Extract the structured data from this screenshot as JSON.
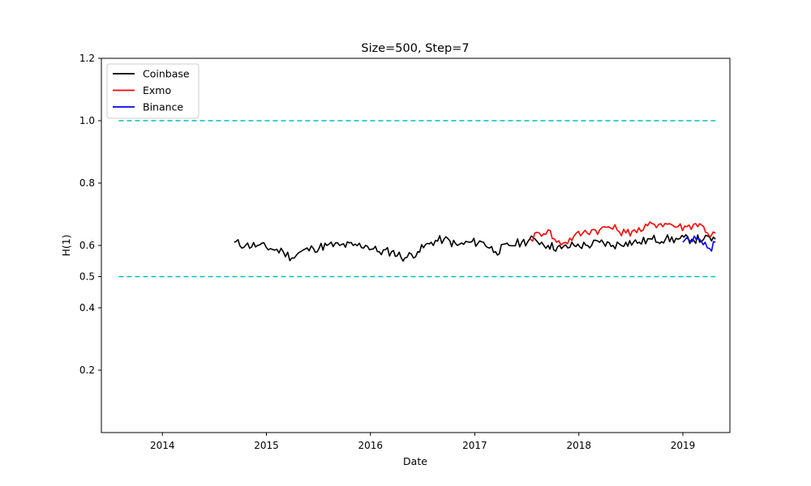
{
  "chart_data": {
    "type": "line",
    "title": "Size=500, Step=7",
    "xlabel": "Date",
    "ylabel": "H(1)",
    "xlim": [
      "2013-06-01",
      "2019-06-15"
    ],
    "ylim": [
      0.0,
      1.2
    ],
    "x_ticks": [
      "2014",
      "2015",
      "2016",
      "2017",
      "2018",
      "2019"
    ],
    "y_ticks": [
      "0.2",
      "0.4",
      "0.5",
      "0.6",
      "0.8",
      "1.0",
      "1.2"
    ],
    "grid": false,
    "legend_position": "top-left",
    "series": [
      {
        "name": "Coinbase",
        "color": "#000000",
        "points": [
          [
            "2014-09-10",
            0.61
          ],
          [
            "2014-10-20",
            0.6
          ],
          [
            "2014-12-01",
            0.6
          ],
          [
            "2015-01-15",
            0.59
          ],
          [
            "2015-03-01",
            0.58
          ],
          [
            "2015-04-01",
            0.56
          ],
          [
            "2015-05-01",
            0.58
          ],
          [
            "2015-06-15",
            0.59
          ],
          [
            "2015-08-01",
            0.6
          ],
          [
            "2015-09-15",
            0.6
          ],
          [
            "2015-11-01",
            0.6
          ],
          [
            "2015-12-15",
            0.6
          ],
          [
            "2016-02-01",
            0.58
          ],
          [
            "2016-03-15",
            0.58
          ],
          [
            "2016-05-01",
            0.56
          ],
          [
            "2016-06-15",
            0.58
          ],
          [
            "2016-08-01",
            0.61
          ],
          [
            "2016-09-15",
            0.62
          ],
          [
            "2016-11-01",
            0.6
          ],
          [
            "2016-12-15",
            0.61
          ],
          [
            "2017-02-01",
            0.61
          ],
          [
            "2017-03-15",
            0.58
          ],
          [
            "2017-05-01",
            0.6
          ],
          [
            "2017-06-15",
            0.61
          ],
          [
            "2017-08-01",
            0.62
          ],
          [
            "2017-09-15",
            0.6
          ],
          [
            "2017-11-01",
            0.59
          ],
          [
            "2017-12-15",
            0.6
          ],
          [
            "2018-02-01",
            0.6
          ],
          [
            "2018-03-15",
            0.61
          ],
          [
            "2018-05-01",
            0.6
          ],
          [
            "2018-06-15",
            0.61
          ],
          [
            "2018-08-01",
            0.61
          ],
          [
            "2018-09-15",
            0.62
          ],
          [
            "2018-11-01",
            0.62
          ],
          [
            "2018-12-15",
            0.62
          ],
          [
            "2019-02-01",
            0.62
          ],
          [
            "2019-03-15",
            0.62
          ],
          [
            "2019-04-25",
            0.62
          ]
        ]
      },
      {
        "name": "Exmo",
        "color": "#ff0000",
        "points": [
          [
            "2017-07-15",
            0.62
          ],
          [
            "2017-08-15",
            0.64
          ],
          [
            "2017-09-15",
            0.65
          ],
          [
            "2017-10-15",
            0.61
          ],
          [
            "2017-11-15",
            0.61
          ],
          [
            "2017-12-15",
            0.63
          ],
          [
            "2018-01-15",
            0.64
          ],
          [
            "2018-02-15",
            0.65
          ],
          [
            "2018-03-15",
            0.65
          ],
          [
            "2018-04-15",
            0.66
          ],
          [
            "2018-05-15",
            0.65
          ],
          [
            "2018-06-15",
            0.64
          ],
          [
            "2018-07-15",
            0.65
          ],
          [
            "2018-08-15",
            0.65
          ],
          [
            "2018-09-15",
            0.67
          ],
          [
            "2018-10-15",
            0.67
          ],
          [
            "2018-11-15",
            0.67
          ],
          [
            "2018-12-15",
            0.66
          ],
          [
            "2019-01-15",
            0.66
          ],
          [
            "2019-02-15",
            0.67
          ],
          [
            "2019-03-15",
            0.66
          ],
          [
            "2019-04-10",
            0.63
          ],
          [
            "2019-04-25",
            0.64
          ]
        ]
      },
      {
        "name": "Binance",
        "color": "#0000ff",
        "points": [
          [
            "2019-01-01",
            0.61
          ],
          [
            "2019-01-20",
            0.62
          ],
          [
            "2019-02-10",
            0.63
          ],
          [
            "2019-03-01",
            0.62
          ],
          [
            "2019-03-20",
            0.61
          ],
          [
            "2019-04-05",
            0.59
          ],
          [
            "2019-04-25",
            0.61
          ]
        ]
      }
    ],
    "reference_lines": [
      {
        "y": 1.0,
        "color": "#00bfbf",
        "style": "dashed",
        "x_from": "2013-08-01",
        "x_to": "2019-04-25"
      },
      {
        "y": 0.5,
        "color": "#00bfbf",
        "style": "dashed",
        "x_from": "2013-08-01",
        "x_to": "2019-04-25"
      }
    ]
  }
}
